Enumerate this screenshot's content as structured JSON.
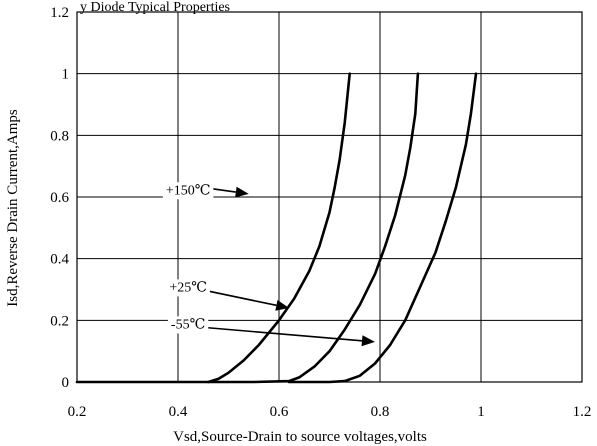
{
  "header_fragment": "y Diode Typical Properties",
  "chart_data": {
    "type": "line",
    "title": "",
    "xlabel": "Vsd,Source-Drain to source voltages,volts",
    "ylabel": "Isd,Reverse Drain Current,Amps",
    "xlim": [
      0.2,
      1.2
    ],
    "ylim": [
      0,
      1.2
    ],
    "x_ticks": [
      "0.2",
      "0.4",
      "0.6",
      "0.8",
      "1",
      "1.2"
    ],
    "y_ticks": [
      "0",
      "0.2",
      "0.4",
      "0.6",
      "0.8",
      "1",
      "1.2"
    ],
    "grid": true,
    "series": [
      {
        "name": "+150℃",
        "points": [
          [
            0.2,
            0
          ],
          [
            0.35,
            0
          ],
          [
            0.46,
            0
          ],
          [
            0.48,
            0.01
          ],
          [
            0.5,
            0.03
          ],
          [
            0.53,
            0.07
          ],
          [
            0.56,
            0.12
          ],
          [
            0.6,
            0.2
          ],
          [
            0.63,
            0.27
          ],
          [
            0.66,
            0.36
          ],
          [
            0.68,
            0.44
          ],
          [
            0.7,
            0.55
          ],
          [
            0.71,
            0.63
          ],
          [
            0.72,
            0.72
          ],
          [
            0.73,
            0.84
          ],
          [
            0.74,
            1.0
          ]
        ]
      },
      {
        "name": "+25℃",
        "points": [
          [
            0.46,
            0
          ],
          [
            0.55,
            0
          ],
          [
            0.62,
            0.003
          ],
          [
            0.64,
            0.015
          ],
          [
            0.67,
            0.05
          ],
          [
            0.7,
            0.1
          ],
          [
            0.73,
            0.17
          ],
          [
            0.76,
            0.25
          ],
          [
            0.79,
            0.35
          ],
          [
            0.81,
            0.44
          ],
          [
            0.83,
            0.54
          ],
          [
            0.85,
            0.67
          ],
          [
            0.86,
            0.76
          ],
          [
            0.87,
            0.87
          ],
          [
            0.875,
            1.0
          ]
        ]
      },
      {
        "name": "-55℃",
        "points": [
          [
            0.62,
            0
          ],
          [
            0.7,
            0
          ],
          [
            0.73,
            0.003
          ],
          [
            0.76,
            0.02
          ],
          [
            0.79,
            0.06
          ],
          [
            0.82,
            0.12
          ],
          [
            0.85,
            0.2
          ],
          [
            0.88,
            0.31
          ],
          [
            0.91,
            0.42
          ],
          [
            0.93,
            0.52
          ],
          [
            0.95,
            0.63
          ],
          [
            0.97,
            0.77
          ],
          [
            0.98,
            0.87
          ],
          [
            0.99,
            1.0
          ]
        ]
      }
    ],
    "annotations": [
      {
        "label": "+150℃",
        "text_at": [
          0.42,
          0.625
        ],
        "arrow_from": [
          0.41,
          0.64
        ],
        "arrow_to": [
          0.54,
          0.61
        ]
      },
      {
        "label": "+25℃",
        "text_at": [
          0.42,
          0.31
        ],
        "arrow_from": [
          0.43,
          0.305
        ],
        "arrow_to": [
          0.62,
          0.24
        ]
      },
      {
        "label": "-55℃",
        "text_at": [
          0.42,
          0.19
        ],
        "arrow_from": [
          0.43,
          0.18
        ],
        "arrow_to": [
          0.79,
          0.13
        ]
      }
    ]
  }
}
